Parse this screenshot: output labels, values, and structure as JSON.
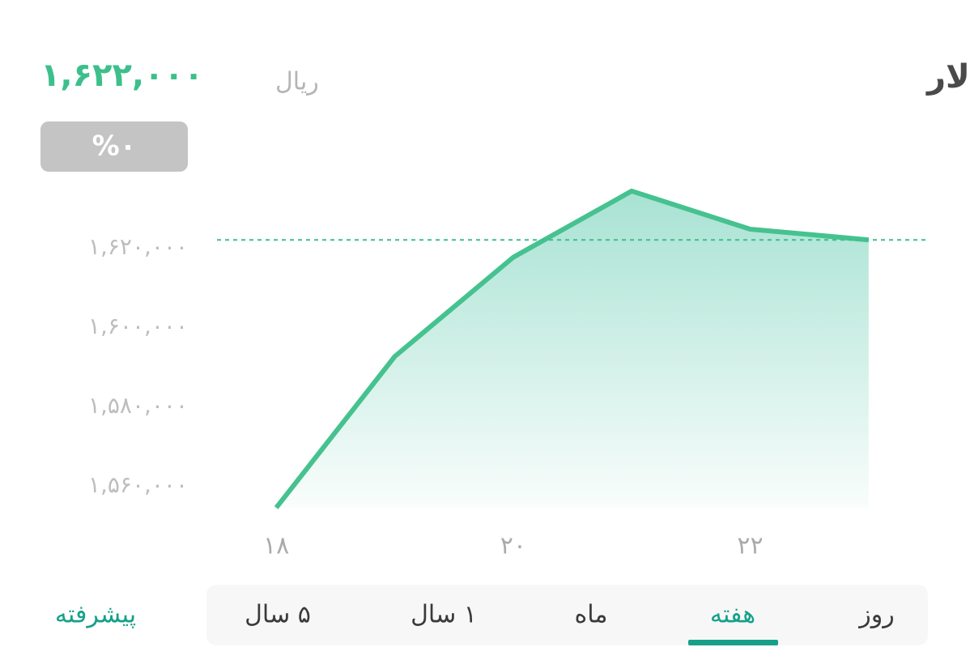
{
  "header": {
    "title": "دلار",
    "unit": "ریال",
    "change": "%۰"
  },
  "chart_data": {
    "type": "line",
    "current": {
      "value": 1622000,
      "label": "۱,۶۲۲,۰۰۰"
    },
    "x": [
      18,
      19,
      20,
      21,
      22,
      23
    ],
    "series": [
      {
        "color": "#45c28f",
        "values": [
          1554500,
          1592600,
          1617600,
          1634300,
          1624700,
          1622000
        ]
      }
    ],
    "xlim": [
      17.5,
      23.5
    ],
    "xticks": [
      {
        "value": 18,
        "label": "۱۸"
      },
      {
        "value": 20,
        "label": "۲۰"
      },
      {
        "value": 22,
        "label": "۲۲"
      }
    ],
    "ylim": [
      1550000,
      1640000
    ],
    "yticks": [
      {
        "value": 1560000,
        "label": "۱,۵۶۰,۰۰۰"
      },
      {
        "value": 1580000,
        "label": "۱,۵۸۰,۰۰۰"
      },
      {
        "value": 1600000,
        "label": "۱,۶۰۰,۰۰۰"
      },
      {
        "value": 1620000,
        "label": "۱,۶۲۰,۰۰۰"
      }
    ]
  },
  "tabs": {
    "items": [
      "روز",
      "هفته",
      "ماه",
      "۱ سال",
      "۵ سال"
    ],
    "selected": "هفته"
  },
  "advanced": "پیشرفته"
}
